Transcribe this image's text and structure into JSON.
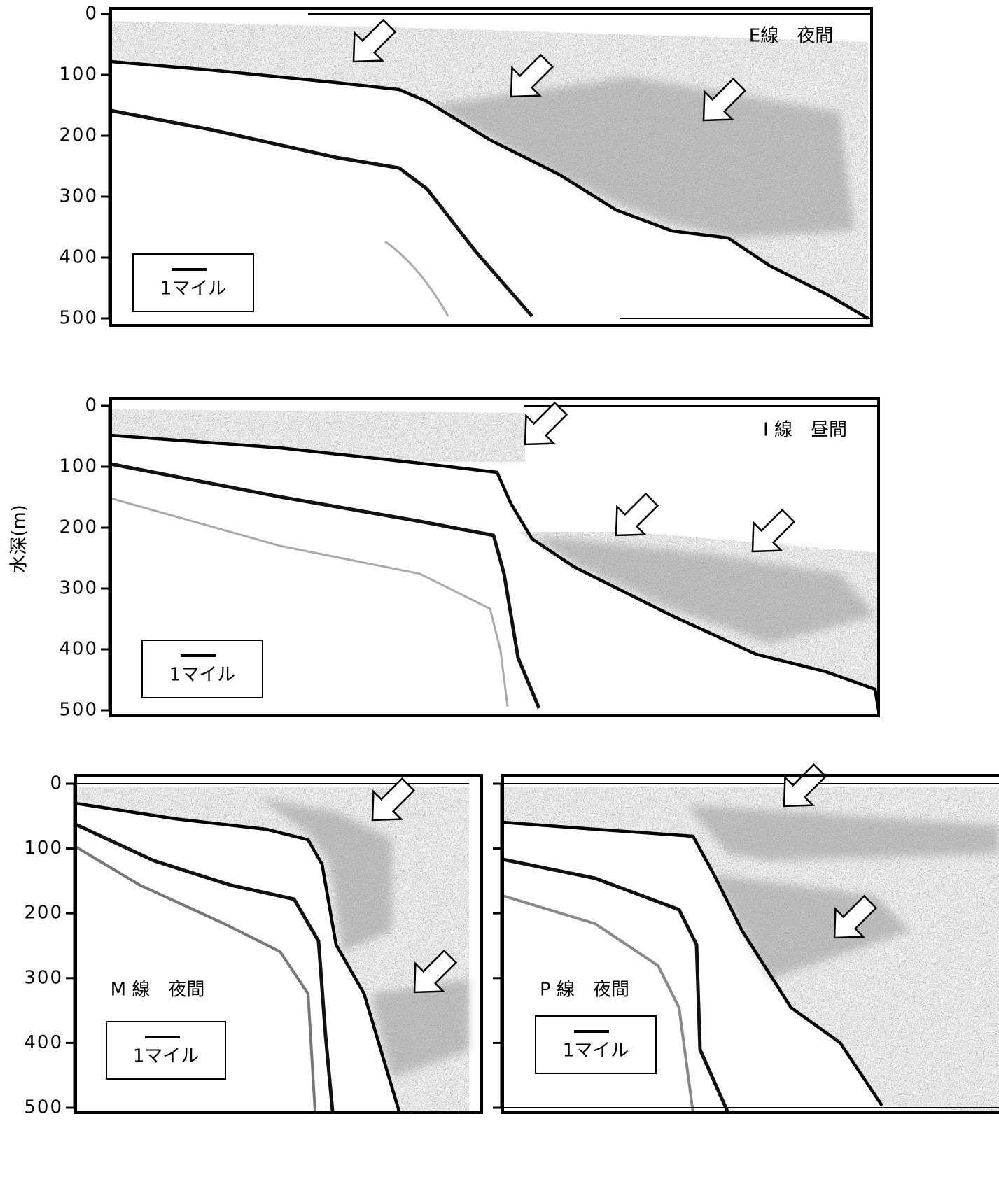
{
  "y_label": "水深(m)",
  "panels": [
    {
      "label": "E線　夜間",
      "scale_label": "1マイル",
      "yticks": [
        0,
        100,
        200,
        300,
        400,
        500
      ],
      "tick_labels": true
    },
    {
      "label": "I 線　昼間",
      "scale_label": "1マイル",
      "yticks": [
        0,
        100,
        200,
        300,
        400,
        500
      ],
      "tick_labels": true
    },
    {
      "label": "M 線　夜間",
      "scale_label": "1マイル",
      "yticks": [
        0,
        100,
        200,
        300,
        400,
        500
      ],
      "tick_labels": true
    },
    {
      "label": "P 線　夜間",
      "scale_label": "1マイル",
      "yticks": [
        0,
        100,
        200,
        300,
        400,
        500
      ],
      "tick_labels": false
    }
  ]
}
